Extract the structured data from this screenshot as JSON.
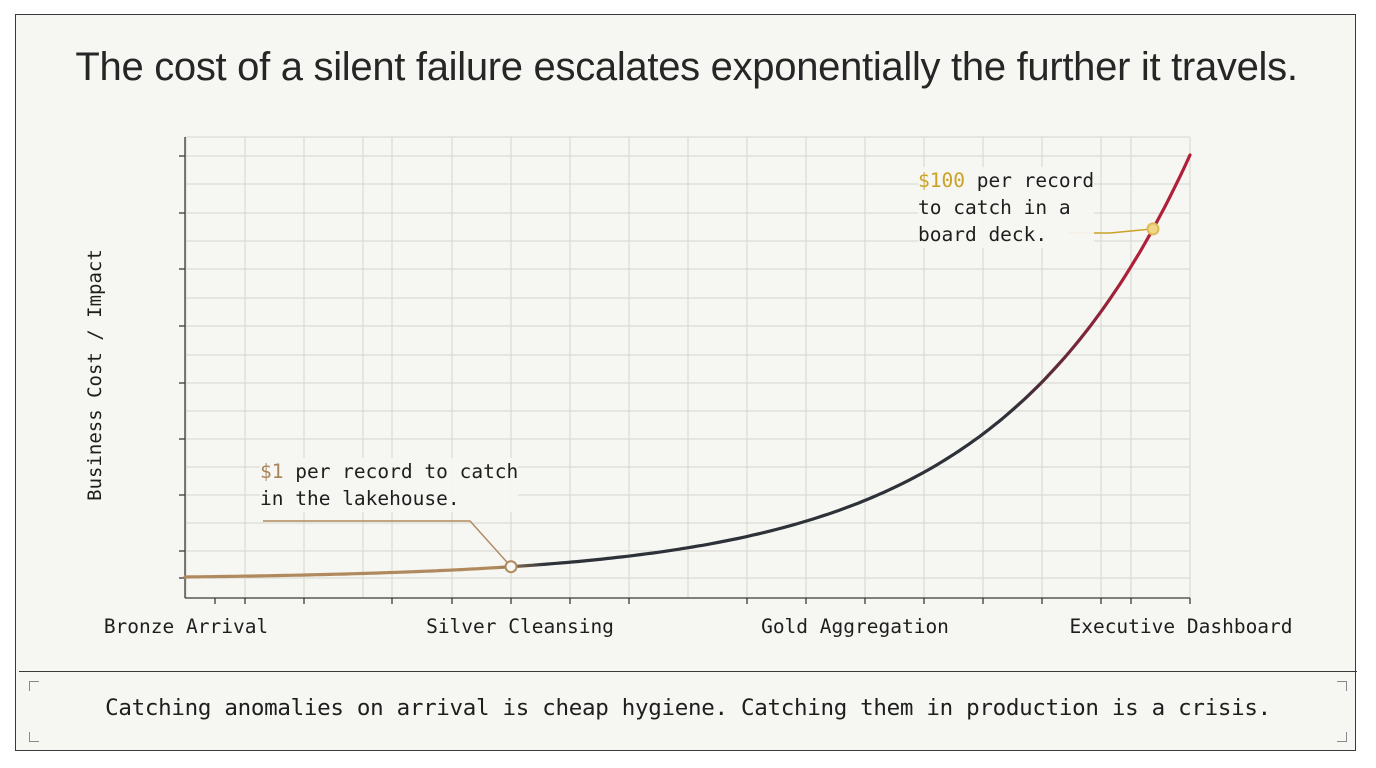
{
  "title": "The cost of a silent failure escalates exponentially the further it travels.",
  "chart_data": {
    "type": "line",
    "title": "The cost of a silent failure escalates exponentially the further it travels.",
    "ylabel": "Business Cost / Impact",
    "xlabel": "",
    "categories": [
      "Bronze Arrival",
      "Silver Cleansing",
      "Gold Aggregation",
      "Executive Dashboard"
    ],
    "y_scale": "exponential, no tick labels",
    "grid": true,
    "annotations": [
      {
        "highlight": "$1",
        "text_line1": " per record to catch",
        "text_line2": "in the lakehouse.",
        "at_stage": "Silver Cleansing",
        "value": 1
      },
      {
        "highlight": "$100",
        "text_line1": " per record",
        "text_line2": "to catch in a",
        "text_line3": "board deck.",
        "at_stage": "Executive Dashboard",
        "value": 100
      }
    ],
    "colors": {
      "start": "#b08a5e",
      "mid": "#2d3138",
      "end": "#b01f3a",
      "marker_low": "#b08a5e",
      "marker_high": "#e0bb55"
    }
  },
  "footer": "Catching anomalies on arrival is cheap hygiene. Catching them in production is a crisis."
}
